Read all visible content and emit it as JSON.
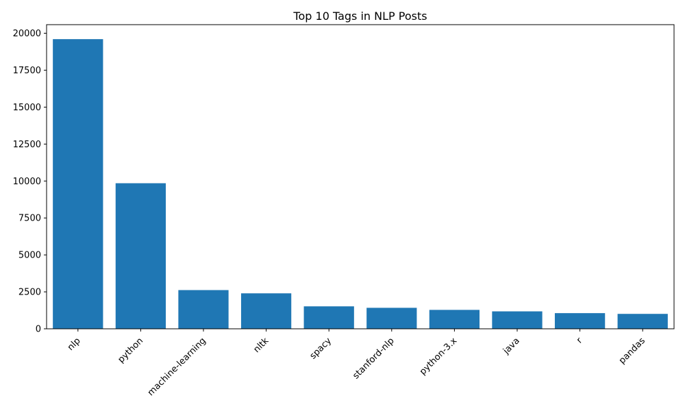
{
  "chart_data": {
    "type": "bar",
    "title": "Top 10 Tags in NLP Posts",
    "xlabel": "",
    "ylabel": "",
    "categories": [
      "nlp",
      "python",
      "machine-learning",
      "nltk",
      "spacy",
      "stanford-nlp",
      "python-3.x",
      "java",
      "r",
      "pandas"
    ],
    "values": [
      19600,
      9850,
      2620,
      2400,
      1520,
      1420,
      1280,
      1180,
      1060,
      1010
    ],
    "ylim": [
      0,
      20580
    ],
    "yticks": [
      0,
      2500,
      5000,
      7500,
      10000,
      12500,
      15000,
      17500,
      20000
    ],
    "xtick_rotation_deg": 45,
    "bar_color": "#1f77b4",
    "grid": false,
    "legend": "none"
  }
}
